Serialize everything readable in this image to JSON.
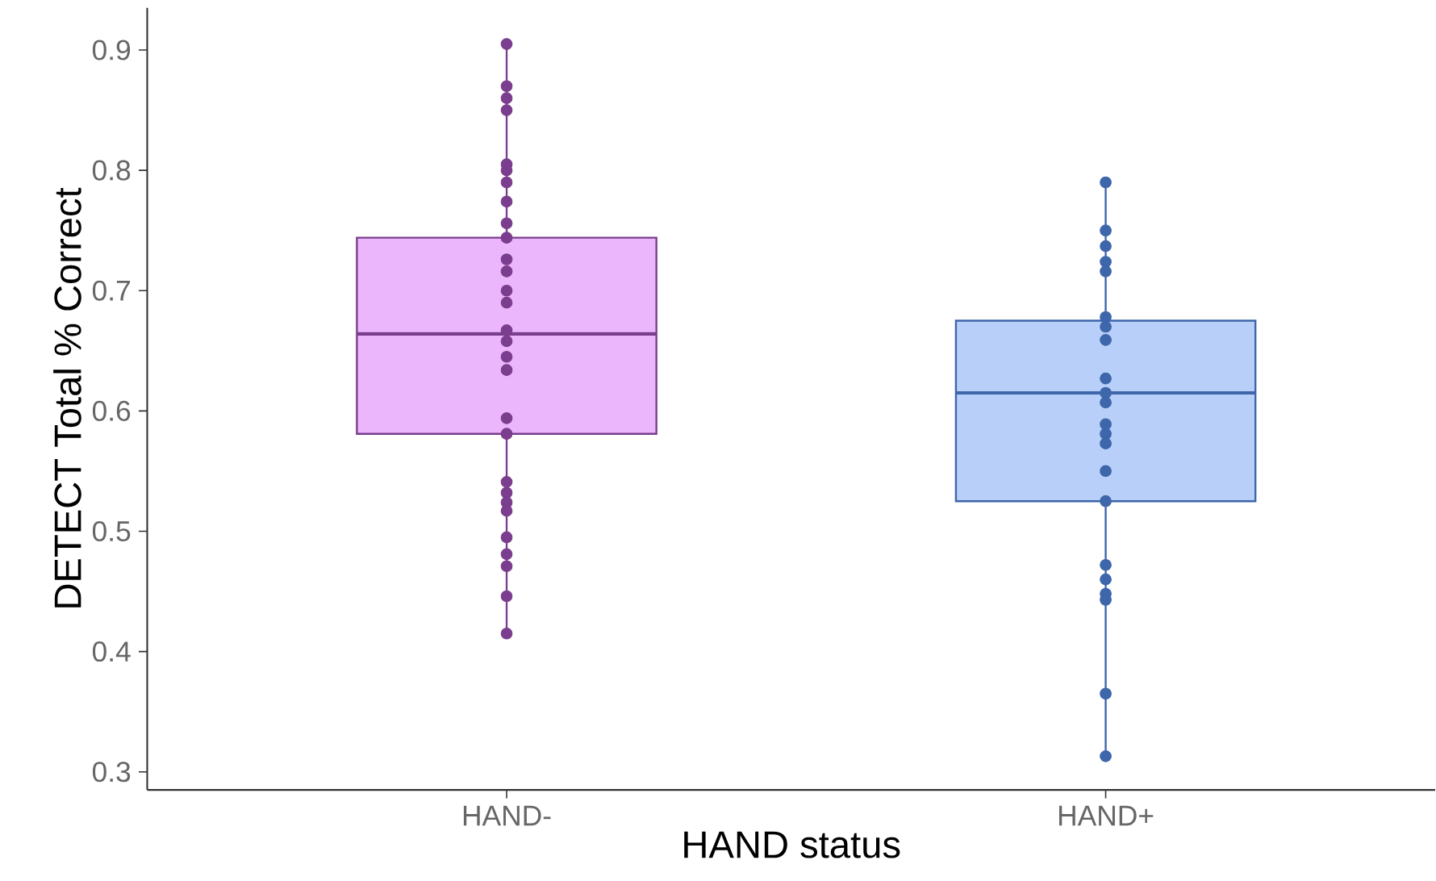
{
  "chart_data": {
    "type": "box",
    "xlabel": "HAND status",
    "ylabel": "DETECT Total % Correct",
    "categories": [
      "HAND-",
      "HAND+"
    ],
    "boxes": [
      {
        "low": 0.415,
        "q1": 0.581,
        "median": 0.664,
        "q3": 0.744,
        "high": 0.905
      },
      {
        "low": 0.313,
        "q1": 0.525,
        "median": 0.615,
        "q3": 0.675,
        "high": 0.789
      }
    ],
    "colors": [
      "#ebb6fb",
      "#b8cff9"
    ],
    "series": [
      {
        "type": "scatter",
        "color": "#7b3d8d",
        "marker": "circle",
        "x": [
          "HAND-",
          "HAND-",
          "HAND-",
          "HAND-",
          "HAND-",
          "HAND-",
          "HAND-",
          "HAND-",
          "HAND-",
          "HAND-",
          "HAND-",
          "HAND-",
          "HAND-",
          "HAND-",
          "HAND-",
          "HAND-",
          "HAND-",
          "HAND-",
          "HAND-",
          "HAND-",
          "HAND-",
          "HAND-",
          "HAND-",
          "HAND-",
          "HAND-",
          "HAND-",
          "HAND-",
          "HAND-",
          "HAND-"
        ],
        "values": [
          0.905,
          0.87,
          0.86,
          0.85,
          0.805,
          0.8,
          0.79,
          0.774,
          0.756,
          0.744,
          0.726,
          0.716,
          0.7,
          0.69,
          0.667,
          0.658,
          0.645,
          0.634,
          0.594,
          0.581,
          0.541,
          0.532,
          0.524,
          0.517,
          0.495,
          0.481,
          0.471,
          0.446,
          0.415
        ]
      },
      {
        "type": "scatter",
        "color": "#3e66aa",
        "marker": "circle",
        "x": [
          "HAND+",
          "HAND+",
          "HAND+",
          "HAND+",
          "HAND+",
          "HAND+",
          "HAND+",
          "HAND+",
          "HAND+",
          "HAND+",
          "HAND+",
          "HAND+",
          "HAND+",
          "HAND+",
          "HAND+",
          "HAND+",
          "HAND+",
          "HAND+",
          "HAND+",
          "HAND+",
          "HAND+",
          "HAND+"
        ],
        "values": [
          0.79,
          0.75,
          0.737,
          0.724,
          0.716,
          0.678,
          0.67,
          0.659,
          0.627,
          0.615,
          0.607,
          0.589,
          0.581,
          0.573,
          0.55,
          0.525,
          0.472,
          0.46,
          0.448,
          0.443,
          0.365,
          0.313
        ]
      }
    ],
    "ylim": [
      0.285,
      0.935
    ],
    "yticks": [
      0.3,
      0.4,
      0.5,
      0.6,
      0.7,
      0.8,
      0.9
    ],
    "grid": false
  }
}
